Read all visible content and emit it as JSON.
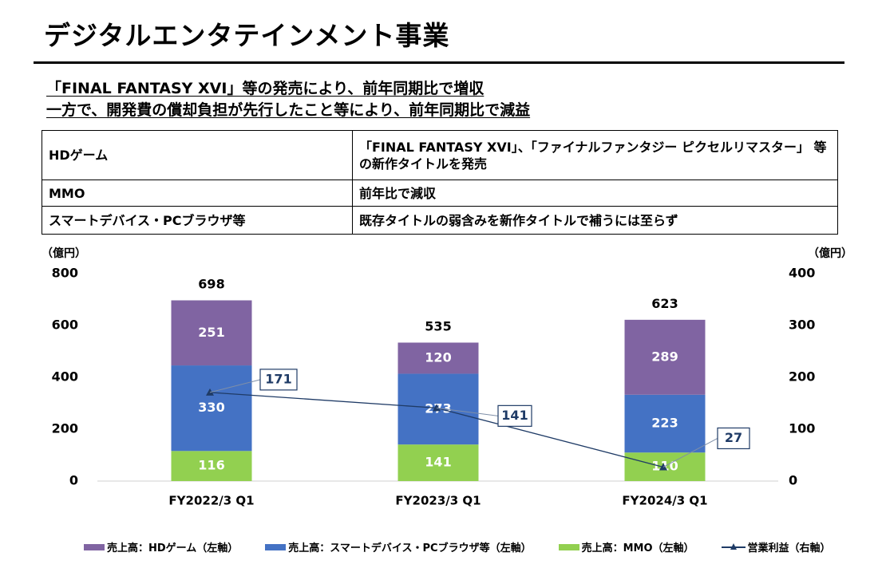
{
  "page": {
    "title": "デジタルエンタテインメント事業",
    "headline1": "「FINAL FANTASY XVI」等の発売により、前年同期比で増収",
    "headline2": "一方で、開発費の償却負担が先行したこと等により、前年同期比で減益"
  },
  "table": {
    "rows": [
      {
        "category": "HDゲーム",
        "description": "「FINAL FANTASY XVI」、「ファイナルファンタジー ピクセルリマスター」 等の新作タイトルを発売"
      },
      {
        "category": "MMO",
        "description": "前年比で減収"
      },
      {
        "category": "スマートデバイス・PCブラウザ等",
        "description": "既存タイトルの弱含みを新作タイトルで補うには至らず"
      }
    ]
  },
  "legend": {
    "hd": "売上高：HDゲーム（左軸）",
    "smart": "売上高：スマートデバイス・PCブラウザ等（左軸）",
    "mmo": "売上高：MMO（左軸）",
    "profit": "営業利益（右軸）"
  },
  "chart_data": {
    "type": "bar",
    "stacked": true,
    "categories": [
      "FY2022/3 Q1",
      "FY2023/3 Q1",
      "FY2024/3 Q1"
    ],
    "series": [
      {
        "name": "売上高：MMO（左軸）",
        "values": [
          116,
          141,
          110
        ],
        "color": "#92d050",
        "axis": "left"
      },
      {
        "name": "売上高：スマートデバイス・PCブラウザ等（左軸）",
        "values": [
          330,
          273,
          223
        ],
        "color": "#4472c4",
        "axis": "left"
      },
      {
        "name": "売上高：HDゲーム（左軸）",
        "values": [
          251,
          120,
          289
        ],
        "color": "#8064a2",
        "axis": "left"
      }
    ],
    "totals": [
      698,
      535,
      623
    ],
    "line_series": {
      "name": "営業利益（右軸）",
      "values": [
        171,
        141,
        27
      ],
      "color": "#1f3b66",
      "axis": "right"
    },
    "y_left": {
      "unit": "（億円）",
      "min": 0,
      "max": 800,
      "ticks": [
        0,
        200,
        400,
        600,
        800
      ]
    },
    "y_right": {
      "unit": "（億円）",
      "min": 0,
      "max": 400,
      "ticks": [
        0,
        100,
        200,
        300,
        400
      ]
    },
    "grid": false,
    "legend_position": "bottom"
  }
}
